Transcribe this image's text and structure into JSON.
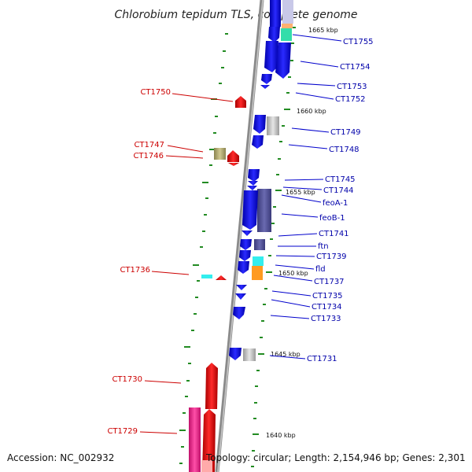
{
  "title": "Chlorobium tepidum TLS, complete genome",
  "footer": {
    "accession": "Accession: NC_002932",
    "summary": "Topology: circular; Length: 2,154,946 bp; Genes: 2,301"
  },
  "kbp_labels": [
    "1665 kbp",
    "1660 kbp",
    "1655 kbp",
    "1650 kbp",
    "1645 kbp",
    "1640 kbp"
  ],
  "genes_right": [
    "CT1755",
    "CT1754",
    "CT1753",
    "CT1752",
    "CT1749",
    "CT1748",
    "CT1745",
    "CT1744",
    "feoA-1",
    "feoB-1",
    "CT1741",
    "ftn",
    "CT1739",
    "fld",
    "CT1737",
    "CT1735",
    "CT1734",
    "CT1733",
    "CT1731"
  ],
  "genes_left": [
    "CT1750",
    "CT1747",
    "CT1746",
    "CT1736",
    "CT1730",
    "CT1729"
  ],
  "colors": {
    "forward": "#cc0000",
    "reverse": "#0000dd",
    "backbone": "#808080",
    "tick": "#228b22",
    "label_right": "#0000aa",
    "label_left": "#cc0000"
  }
}
